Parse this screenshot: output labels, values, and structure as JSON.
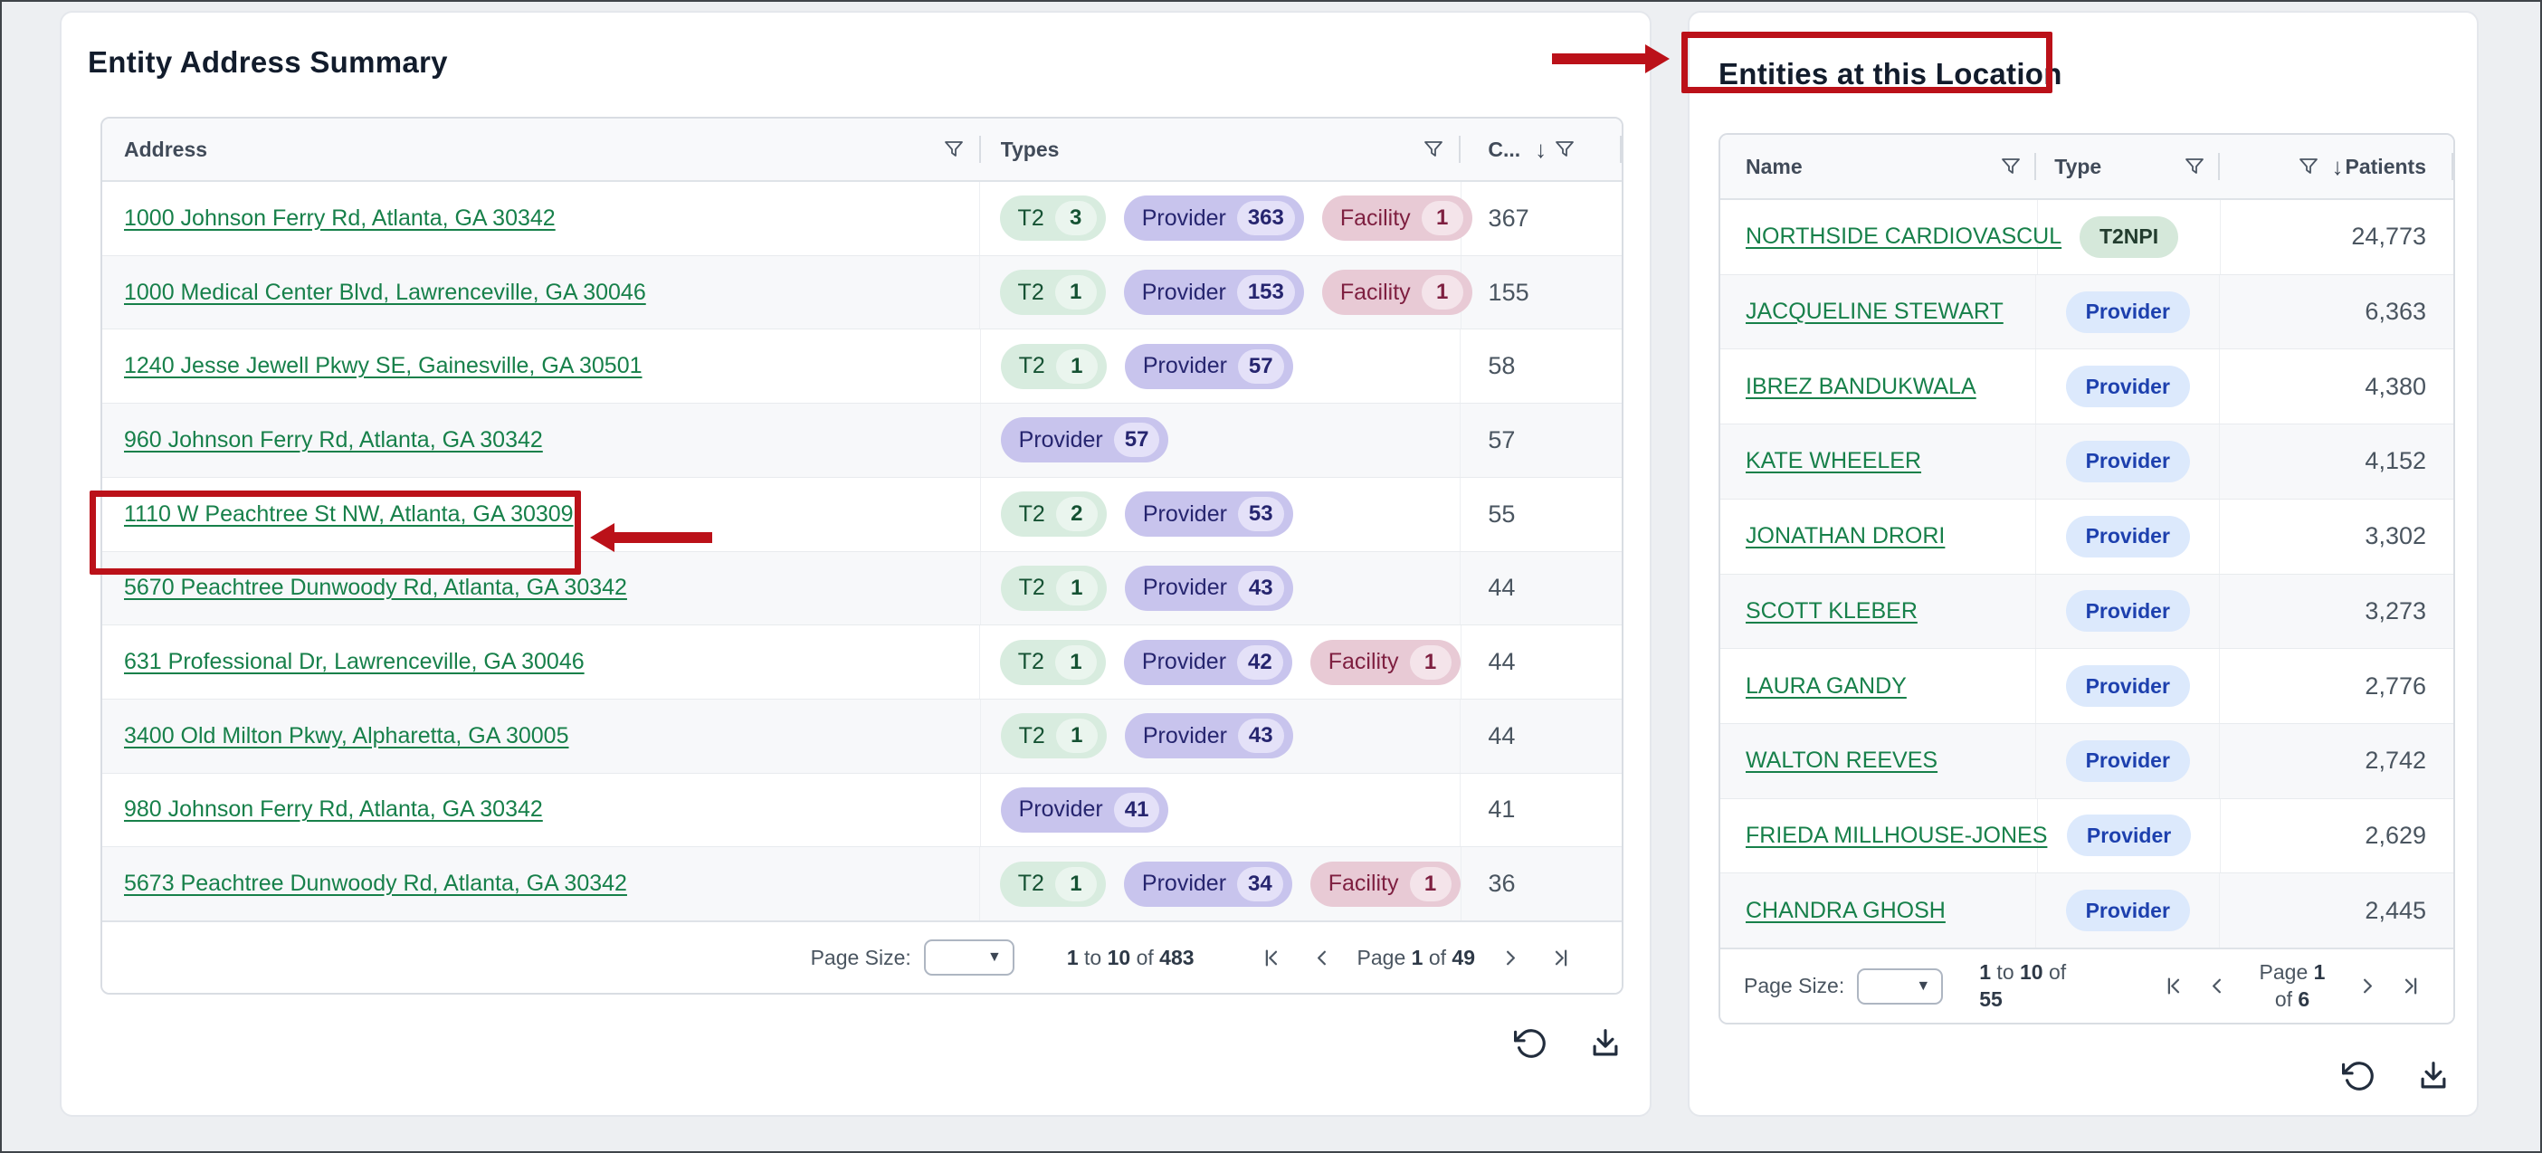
{
  "icons": {
    "sort_desc": "↓",
    "dropdown": "▼"
  },
  "annotation_color": "#bb1119",
  "left_panel": {
    "title": "Entity Address Summary",
    "columns": [
      {
        "label": "Address"
      },
      {
        "label": "Types"
      },
      {
        "label": "C..."
      }
    ],
    "rows": [
      {
        "address": "1000 Johnson Ferry Rd, Atlanta, GA 30342",
        "badges": [
          {
            "kind": "t2",
            "label": "T2",
            "count": "3"
          },
          {
            "kind": "provider",
            "label": "Provider",
            "count": "363"
          },
          {
            "kind": "facility",
            "label": "Facility",
            "count": "1"
          }
        ],
        "count": "367"
      },
      {
        "address": "1000 Medical Center Blvd, Lawrenceville, GA 30046",
        "badges": [
          {
            "kind": "t2",
            "label": "T2",
            "count": "1"
          },
          {
            "kind": "provider",
            "label": "Provider",
            "count": "153"
          },
          {
            "kind": "facility",
            "label": "Facility",
            "count": "1"
          }
        ],
        "count": "155"
      },
      {
        "address": "1240 Jesse Jewell Pkwy SE, Gainesville, GA 30501",
        "badges": [
          {
            "kind": "t2",
            "label": "T2",
            "count": "1"
          },
          {
            "kind": "provider",
            "label": "Provider",
            "count": "57"
          }
        ],
        "count": "58"
      },
      {
        "address": "960 Johnson Ferry Rd, Atlanta, GA 30342",
        "badges": [
          {
            "kind": "provider",
            "label": "Provider",
            "count": "57"
          }
        ],
        "count": "57"
      },
      {
        "address": "1110 W Peachtree St NW, Atlanta, GA 30309",
        "badges": [
          {
            "kind": "t2",
            "label": "T2",
            "count": "2"
          },
          {
            "kind": "provider",
            "label": "Provider",
            "count": "53"
          }
        ],
        "count": "55",
        "highlighted": true
      },
      {
        "address": "5670 Peachtree Dunwoody Rd, Atlanta, GA 30342",
        "badges": [
          {
            "kind": "t2",
            "label": "T2",
            "count": "1"
          },
          {
            "kind": "provider",
            "label": "Provider",
            "count": "43"
          }
        ],
        "count": "44"
      },
      {
        "address": "631 Professional Dr, Lawrenceville, GA 30046",
        "badges": [
          {
            "kind": "t2",
            "label": "T2",
            "count": "1"
          },
          {
            "kind": "provider",
            "label": "Provider",
            "count": "42"
          },
          {
            "kind": "facility",
            "label": "Facility",
            "count": "1"
          }
        ],
        "count": "44"
      },
      {
        "address": "3400 Old Milton Pkwy, Alpharetta, GA 30005",
        "badges": [
          {
            "kind": "t2",
            "label": "T2",
            "count": "1"
          },
          {
            "kind": "provider",
            "label": "Provider",
            "count": "43"
          }
        ],
        "count": "44"
      },
      {
        "address": "980 Johnson Ferry Rd, Atlanta, GA 30342",
        "badges": [
          {
            "kind": "provider",
            "label": "Provider",
            "count": "41"
          }
        ],
        "count": "41"
      },
      {
        "address": "5673 Peachtree Dunwoody Rd, Atlanta, GA 30342",
        "badges": [
          {
            "kind": "t2",
            "label": "T2",
            "count": "1"
          },
          {
            "kind": "provider",
            "label": "Provider",
            "count": "34"
          },
          {
            "kind": "facility",
            "label": "Facility",
            "count": "1"
          }
        ],
        "count": "36"
      }
    ],
    "pagination": {
      "page_size_label": "Page Size:",
      "range_parts": [
        {
          "t": "1",
          "b": true
        },
        {
          "t": " to ",
          "b": false
        },
        {
          "t": "10",
          "b": true
        },
        {
          "t": " of ",
          "b": false
        },
        {
          "t": "483",
          "b": true
        }
      ],
      "page_parts": [
        {
          "t": "Page ",
          "b": false
        },
        {
          "t": "1",
          "b": true
        },
        {
          "t": " of ",
          "b": false
        },
        {
          "t": "49",
          "b": true
        }
      ]
    }
  },
  "right_panel": {
    "title": "Entities at this Location",
    "columns": [
      {
        "label": "Name"
      },
      {
        "label": "Type"
      },
      {
        "label": "Patients"
      }
    ],
    "rows": [
      {
        "name": "NORTHSIDE CARDIOVASCUL",
        "type": {
          "kind": "t2npi",
          "label": "T2NPI"
        },
        "patients": "24,773"
      },
      {
        "name": "JACQUELINE STEWART",
        "type": {
          "kind": "provider",
          "label": "Provider"
        },
        "patients": "6,363"
      },
      {
        "name": "IBREZ BANDUKWALA",
        "type": {
          "kind": "provider",
          "label": "Provider"
        },
        "patients": "4,380"
      },
      {
        "name": "KATE WHEELER",
        "type": {
          "kind": "provider",
          "label": "Provider"
        },
        "patients": "4,152"
      },
      {
        "name": "JONATHAN DRORI",
        "type": {
          "kind": "provider",
          "label": "Provider"
        },
        "patients": "3,302"
      },
      {
        "name": "SCOTT KLEBER",
        "type": {
          "kind": "provider",
          "label": "Provider"
        },
        "patients": "3,273"
      },
      {
        "name": "LAURA GANDY",
        "type": {
          "kind": "provider",
          "label": "Provider"
        },
        "patients": "2,776"
      },
      {
        "name": "WALTON REEVES",
        "type": {
          "kind": "provider",
          "label": "Provider"
        },
        "patients": "2,742"
      },
      {
        "name": "FRIEDA MILLHOUSE-JONES",
        "type": {
          "kind": "provider",
          "label": "Provider"
        },
        "patients": "2,629"
      },
      {
        "name": "CHANDRA GHOSH",
        "type": {
          "kind": "provider",
          "label": "Provider"
        },
        "patients": "2,445"
      }
    ],
    "pagination": {
      "page_size_label": "Page Size:",
      "range_parts": [
        {
          "t": "1",
          "b": true
        },
        {
          "t": " to ",
          "b": false
        },
        {
          "t": "10",
          "b": true
        },
        {
          "t": " of ",
          "b": false
        },
        {
          "t": "55",
          "b": true
        }
      ],
      "page_parts": [
        {
          "t": "Page ",
          "b": false
        },
        {
          "t": "1",
          "b": true
        },
        {
          "t": " of ",
          "b": false
        },
        {
          "t": "6",
          "b": true
        }
      ]
    }
  }
}
